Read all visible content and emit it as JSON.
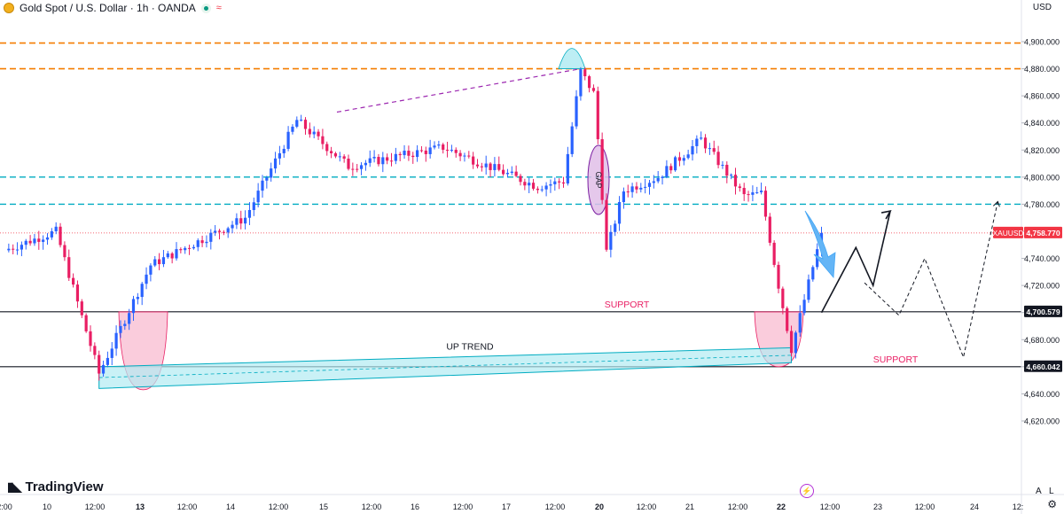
{
  "header": {
    "title": "Gold Spot / U.S. Dollar · 1h · OANDA",
    "currency": "USD"
  },
  "footer": {
    "brand": "TradingView",
    "auto_label": "A",
    "log_label": "L"
  },
  "colors": {
    "up": "#2962ff",
    "down": "#e91e63",
    "orange_level": "#f57c00",
    "cyan_level": "#00acc1",
    "support_line": "#131722",
    "trend_fill": "#b2ebf2",
    "label_bg": "#131722",
    "price_tag_bg": "#f23645"
  },
  "chart_data": {
    "type": "candlestick",
    "symbol": "XAUUSD",
    "current_price": "4,758.770",
    "ylim": [
      4610,
      4915
    ],
    "y_ticks": [
      "4,620.000",
      "4,640.000",
      "4,660.000",
      "4,680.000",
      "4,700.000",
      "4,720.000",
      "4,740.000",
      "4,760.000",
      "4,780.000",
      "4,800.000",
      "4,820.000",
      "4,840.000",
      "4,860.000",
      "4,880.000",
      "4,900.000"
    ],
    "x_ticks": [
      "2:00",
      "10",
      "12:00",
      "13",
      "12:00",
      "14",
      "12:00",
      "15",
      "12:00",
      "16",
      "12:00",
      "17",
      "12:00",
      "20",
      "12:00",
      "21",
      "12:00",
      "22",
      "12:00",
      "23",
      "12:00",
      "24",
      "12:"
    ],
    "bold_x_ticks": [
      "13",
      "20",
      "22"
    ],
    "levels": [
      {
        "price": 4899,
        "style": "orange-dashed"
      },
      {
        "price": 4880,
        "style": "orange-dashed"
      },
      {
        "price": 4800,
        "style": "cyan-dashed"
      },
      {
        "price": 4780,
        "style": "cyan-dashed"
      },
      {
        "price": 4700.579,
        "label": "4,700.579",
        "style": "solid"
      },
      {
        "price": 4660.042,
        "label": "4,660.042",
        "style": "solid"
      }
    ],
    "annotations": {
      "support_upper": "SUPPORT",
      "support_lower": "SUPPORT",
      "uptrend": "UP TREND",
      "gap": "GAP"
    },
    "anchors": [
      {
        "label": "10 00:00",
        "hour": 0,
        "price": 4746
      },
      {
        "label": "10 12:00",
        "hour": 12,
        "price": 4760
      },
      {
        "label": "13 00:00",
        "hour": 22,
        "price": 4655
      },
      {
        "label": "13 12:00",
        "hour": 34,
        "price": 4735
      },
      {
        "label": "14 12:00",
        "hour": 56,
        "price": 4770
      },
      {
        "label": "15 00:00",
        "hour": 68,
        "price": 4842
      },
      {
        "label": "15 12:00",
        "hour": 80,
        "price": 4808
      },
      {
        "label": "16 12:00",
        "hour": 102,
        "price": 4822
      },
      {
        "label": "17 12:00",
        "hour": 124,
        "price": 4793
      },
      {
        "label": "17 18:00",
        "hour": 130,
        "price": 4797
      },
      {
        "label": "17 22:00",
        "hour": 134,
        "price": 4878
      },
      {
        "label": "20 01:00",
        "hour": 137,
        "price": 4862
      },
      {
        "label": "20 02:00",
        "hour": 138,
        "price": 4828
      },
      {
        "label": "20 04:00",
        "hour": 140,
        "price": 4745
      },
      {
        "label": "20 08:00",
        "hour": 144,
        "price": 4790
      },
      {
        "label": "20 16:00",
        "hour": 152,
        "price": 4800
      },
      {
        "label": "21 02:00",
        "hour": 162,
        "price": 4828
      },
      {
        "label": "21 12:00",
        "hour": 172,
        "price": 4786
      },
      {
        "label": "21 16:00",
        "hour": 176,
        "price": 4788
      },
      {
        "label": "21 20:00",
        "hour": 180,
        "price": 4720
      },
      {
        "label": "21 23:00",
        "hour": 183,
        "price": 4673
      },
      {
        "label": "22 06:00",
        "hour": 190,
        "price": 4758
      }
    ],
    "projection_solid": [
      {
        "hour": 190,
        "price": 4700
      },
      {
        "hour": 198,
        "price": 4748
      },
      {
        "hour": 202,
        "price": 4720
      },
      {
        "hour": 206,
        "price": 4775
      }
    ],
    "projection_dashed": [
      {
        "hour": 200,
        "price": 4722
      },
      {
        "hour": 208,
        "price": 4698
      },
      {
        "hour": 214,
        "price": 4740
      },
      {
        "hour": 223,
        "price": 4667
      },
      {
        "hour": 231,
        "price": 4782
      }
    ]
  }
}
